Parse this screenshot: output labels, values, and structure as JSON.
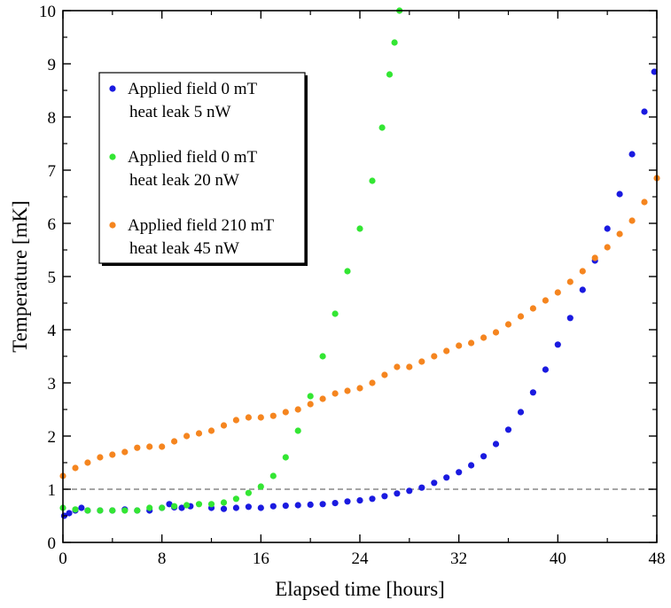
{
  "chart_data": {
    "type": "scatter",
    "title": "",
    "xlabel": "Elapsed time [hours]",
    "ylabel": "Temperature [mK]",
    "xlim": [
      0,
      48
    ],
    "ylim": [
      0,
      10
    ],
    "x_ticks": [
      0,
      8,
      16,
      24,
      32,
      40,
      48
    ],
    "y_ticks": [
      0,
      1,
      2,
      3,
      4,
      5,
      6,
      7,
      8,
      9,
      10
    ],
    "x_tick_labels": [
      "0",
      "8",
      "16",
      "24",
      "32",
      "40",
      "48"
    ],
    "y_tick_labels": [
      "0",
      "1",
      "2",
      "3",
      "4",
      "5",
      "6",
      "7",
      "8",
      "9",
      "10"
    ],
    "grid": false,
    "reference_line": {
      "y": 1,
      "style": "dashed",
      "color": "#888888"
    },
    "legend": {
      "placement": "top-left",
      "entries": [
        {
          "series": 0,
          "line1": "Applied field 0 mT",
          "line2": "heat leak 5 nW"
        },
        {
          "series": 1,
          "line1": "Applied field 0 mT",
          "line2": "heat leak 20 nW"
        },
        {
          "series": 2,
          "line1": "Applied field 210 mT",
          "line2": "heat leak 45 nW"
        }
      ]
    },
    "series": [
      {
        "name": "Applied field 0 mT heat leak 5 nW",
        "color": "#1a1ae0",
        "marker_size": "medium",
        "points": [
          [
            0.1,
            0.5
          ],
          [
            0.5,
            0.55
          ],
          [
            1.0,
            0.6
          ],
          [
            1.5,
            0.65
          ],
          [
            2,
            0.6
          ],
          [
            3,
            0.6
          ],
          [
            4,
            0.6
          ],
          [
            5,
            0.62
          ],
          [
            6,
            0.6
          ],
          [
            7,
            0.6
          ],
          [
            8,
            0.65
          ],
          [
            8.6,
            0.72
          ],
          [
            9,
            0.66
          ],
          [
            9.6,
            0.65
          ],
          [
            10.3,
            0.68
          ],
          [
            12,
            0.65
          ],
          [
            13,
            0.63
          ],
          [
            14,
            0.65
          ],
          [
            15,
            0.67
          ],
          [
            16,
            0.65
          ],
          [
            17,
            0.68
          ],
          [
            18,
            0.69
          ],
          [
            19,
            0.7
          ],
          [
            20,
            0.71
          ],
          [
            21,
            0.72
          ],
          [
            22,
            0.74
          ],
          [
            23,
            0.77
          ],
          [
            24,
            0.79
          ],
          [
            25,
            0.82
          ],
          [
            26,
            0.87
          ],
          [
            27,
            0.92
          ],
          [
            28,
            0.97
          ],
          [
            29,
            1.03
          ],
          [
            30,
            1.12
          ],
          [
            31,
            1.22
          ],
          [
            32,
            1.32
          ],
          [
            33,
            1.45
          ],
          [
            34,
            1.62
          ],
          [
            35,
            1.85
          ],
          [
            36,
            2.12
          ],
          [
            37,
            2.45
          ],
          [
            38,
            2.82
          ],
          [
            39,
            3.25
          ],
          [
            40,
            3.72
          ],
          [
            41,
            4.22
          ],
          [
            42,
            4.75
          ],
          [
            43,
            5.3
          ],
          [
            44,
            5.9
          ],
          [
            45,
            6.55
          ],
          [
            46,
            7.3
          ],
          [
            47,
            8.1
          ],
          [
            47.8,
            8.85
          ]
        ]
      },
      {
        "name": "Applied field 0 mT heat leak 20 nW",
        "color": "#33e633",
        "marker_size": "medium",
        "points": [
          [
            0,
            0.65
          ],
          [
            1,
            0.62
          ],
          [
            2,
            0.6
          ],
          [
            3,
            0.6
          ],
          [
            4,
            0.6
          ],
          [
            5,
            0.6
          ],
          [
            6,
            0.6
          ],
          [
            7,
            0.65
          ],
          [
            8,
            0.65
          ],
          [
            9,
            0.68
          ],
          [
            10,
            0.7
          ],
          [
            11,
            0.72
          ],
          [
            12,
            0.72
          ],
          [
            13,
            0.75
          ],
          [
            14,
            0.82
          ],
          [
            15,
            0.93
          ],
          [
            16,
            1.05
          ],
          [
            17,
            1.25
          ],
          [
            18,
            1.6
          ],
          [
            19,
            2.1
          ],
          [
            20,
            2.75
          ],
          [
            21,
            3.5
          ],
          [
            22,
            4.3
          ],
          [
            23,
            5.1
          ],
          [
            24,
            5.9
          ],
          [
            25,
            6.8
          ],
          [
            25.8,
            7.8
          ],
          [
            26.4,
            8.8
          ],
          [
            26.8,
            9.4
          ],
          [
            27.2,
            10.0
          ]
        ]
      },
      {
        "name": "Applied field 210 mT heat leak 45 nW",
        "color": "#f5851f",
        "marker_size": "medium",
        "points": [
          [
            0,
            1.25
          ],
          [
            1,
            1.4
          ],
          [
            2,
            1.5
          ],
          [
            3,
            1.6
          ],
          [
            4,
            1.65
          ],
          [
            5,
            1.7
          ],
          [
            6,
            1.78
          ],
          [
            7,
            1.8
          ],
          [
            8,
            1.8
          ],
          [
            9,
            1.9
          ],
          [
            10,
            2.0
          ],
          [
            11,
            2.05
          ],
          [
            12,
            2.1
          ],
          [
            13,
            2.2
          ],
          [
            14,
            2.3
          ],
          [
            15,
            2.35
          ],
          [
            16,
            2.35
          ],
          [
            17,
            2.38
          ],
          [
            18,
            2.45
          ],
          [
            19,
            2.5
          ],
          [
            20,
            2.6
          ],
          [
            21,
            2.7
          ],
          [
            22,
            2.8
          ],
          [
            23,
            2.85
          ],
          [
            24,
            2.9
          ],
          [
            25,
            3.0
          ],
          [
            26,
            3.15
          ],
          [
            27,
            3.3
          ],
          [
            28,
            3.3
          ],
          [
            29,
            3.4
          ],
          [
            30,
            3.5
          ],
          [
            31,
            3.6
          ],
          [
            32,
            3.7
          ],
          [
            33,
            3.75
          ],
          [
            34,
            3.85
          ],
          [
            35,
            3.95
          ],
          [
            36,
            4.1
          ],
          [
            37,
            4.25
          ],
          [
            38,
            4.4
          ],
          [
            39,
            4.55
          ],
          [
            40,
            4.7
          ],
          [
            41,
            4.9
          ],
          [
            42,
            5.1
          ],
          [
            43,
            5.35
          ],
          [
            44,
            5.55
          ],
          [
            45,
            5.8
          ],
          [
            46,
            6.05
          ],
          [
            47,
            6.4
          ],
          [
            48,
            6.85
          ]
        ]
      }
    ]
  }
}
